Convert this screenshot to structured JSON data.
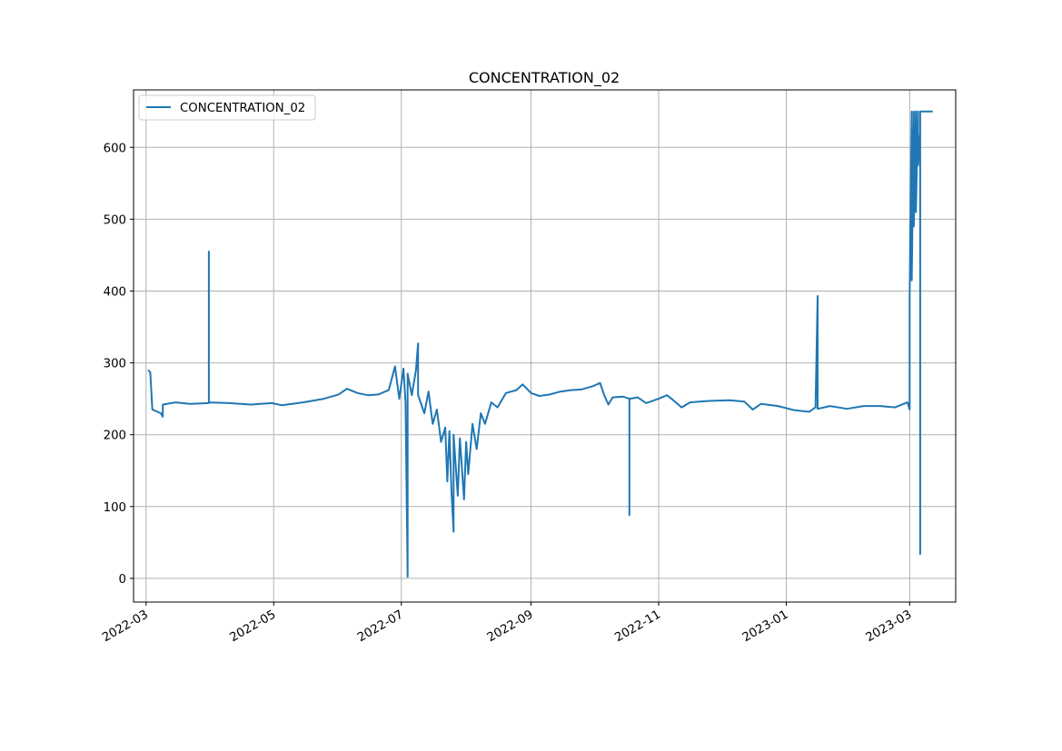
{
  "chart_data": {
    "type": "line",
    "title": "CONCENTRATION_02",
    "xlabel": "",
    "ylabel": "",
    "x_tick_labels": [
      "2022-03",
      "2022-05",
      "2022-07",
      "2022-09",
      "2022-11",
      "2023-01",
      "2023-03"
    ],
    "y_ticks": [
      0,
      100,
      200,
      300,
      400,
      500,
      600
    ],
    "xlim": [
      "2022-02-23",
      "2023-03-23"
    ],
    "ylim": [
      -33,
      680
    ],
    "grid": true,
    "legend_placement": "upper-left",
    "colors": {
      "series": "#1f77b4",
      "grid": "#b0b0b0"
    },
    "series": [
      {
        "name": "CONCENTRATION_02",
        "points": [
          [
            "2022-03-02",
            290
          ],
          [
            "2022-03-03",
            287
          ],
          [
            "2022-03-04",
            235
          ],
          [
            "2022-03-08",
            230
          ],
          [
            "2022-03-09",
            225
          ],
          [
            "2022-03-09",
            242
          ],
          [
            "2022-03-15",
            245
          ],
          [
            "2022-03-22",
            243
          ],
          [
            "2022-03-31",
            244
          ],
          [
            "2022-03-31",
            455
          ],
          [
            "2022-03-31",
            245
          ],
          [
            "2022-04-10",
            244
          ],
          [
            "2022-04-20",
            242
          ],
          [
            "2022-04-30",
            244
          ],
          [
            "2022-05-05",
            241
          ],
          [
            "2022-05-15",
            245
          ],
          [
            "2022-05-25",
            250
          ],
          [
            "2022-06-01",
            256
          ],
          [
            "2022-06-05",
            264
          ],
          [
            "2022-06-10",
            258
          ],
          [
            "2022-06-15",
            255
          ],
          [
            "2022-06-20",
            256
          ],
          [
            "2022-06-25",
            262
          ],
          [
            "2022-06-28",
            295
          ],
          [
            "2022-06-30",
            250
          ],
          [
            "2022-07-02",
            292
          ],
          [
            "2022-07-03",
            245
          ],
          [
            "2022-07-04",
            2
          ],
          [
            "2022-07-04",
            285
          ],
          [
            "2022-07-06",
            255
          ],
          [
            "2022-07-08",
            290
          ],
          [
            "2022-07-09",
            327
          ],
          [
            "2022-07-09",
            255
          ],
          [
            "2022-07-12",
            230
          ],
          [
            "2022-07-14",
            260
          ],
          [
            "2022-07-16",
            215
          ],
          [
            "2022-07-18",
            235
          ],
          [
            "2022-07-20",
            190
          ],
          [
            "2022-07-22",
            210
          ],
          [
            "2022-07-23",
            135
          ],
          [
            "2022-07-24",
            205
          ],
          [
            "2022-07-25",
            120
          ],
          [
            "2022-07-26",
            65
          ],
          [
            "2022-07-26",
            200
          ],
          [
            "2022-07-28",
            115
          ],
          [
            "2022-07-29",
            195
          ],
          [
            "2022-07-31",
            110
          ],
          [
            "2022-08-01",
            190
          ],
          [
            "2022-08-02",
            145
          ],
          [
            "2022-08-04",
            215
          ],
          [
            "2022-08-06",
            180
          ],
          [
            "2022-08-08",
            230
          ],
          [
            "2022-08-10",
            215
          ],
          [
            "2022-08-13",
            245
          ],
          [
            "2022-08-16",
            238
          ],
          [
            "2022-08-20",
            258
          ],
          [
            "2022-08-25",
            262
          ],
          [
            "2022-08-28",
            270
          ],
          [
            "2022-09-01",
            258
          ],
          [
            "2022-09-05",
            254
          ],
          [
            "2022-09-10",
            256
          ],
          [
            "2022-09-15",
            260
          ],
          [
            "2022-09-20",
            262
          ],
          [
            "2022-09-25",
            263
          ],
          [
            "2022-10-01",
            268
          ],
          [
            "2022-10-04",
            272
          ],
          [
            "2022-10-06",
            255
          ],
          [
            "2022-10-08",
            242
          ],
          [
            "2022-10-10",
            252
          ],
          [
            "2022-10-15",
            253
          ],
          [
            "2022-10-18",
            250
          ],
          [
            "2022-10-18",
            88
          ],
          [
            "2022-10-18",
            250
          ],
          [
            "2022-10-22",
            252
          ],
          [
            "2022-10-26",
            244
          ],
          [
            "2022-11-01",
            250
          ],
          [
            "2022-11-05",
            255
          ],
          [
            "2022-11-08",
            248
          ],
          [
            "2022-11-12",
            238
          ],
          [
            "2022-11-16",
            245
          ],
          [
            "2022-11-25",
            247
          ],
          [
            "2022-12-05",
            248
          ],
          [
            "2022-12-12",
            246
          ],
          [
            "2022-12-16",
            235
          ],
          [
            "2022-12-20",
            243
          ],
          [
            "2022-12-28",
            240
          ],
          [
            "2023-01-05",
            234
          ],
          [
            "2023-01-12",
            232
          ],
          [
            "2023-01-15",
            238
          ],
          [
            "2023-01-16",
            393
          ],
          [
            "2023-01-16",
            236
          ],
          [
            "2023-01-22",
            240
          ],
          [
            "2023-01-30",
            236
          ],
          [
            "2023-02-07",
            240
          ],
          [
            "2023-02-15",
            240
          ],
          [
            "2023-02-22",
            238
          ],
          [
            "2023-02-28",
            245
          ],
          [
            "2023-03-01",
            235
          ],
          [
            "2023-03-01",
            255
          ],
          [
            "2023-03-01",
            390
          ],
          [
            "2023-03-02",
            650
          ],
          [
            "2023-03-02",
            415
          ],
          [
            "2023-03-03",
            650
          ],
          [
            "2023-03-03",
            490
          ],
          [
            "2023-03-04",
            650
          ],
          [
            "2023-03-04",
            510
          ],
          [
            "2023-03-05",
            650
          ],
          [
            "2023-03-05",
            575
          ],
          [
            "2023-03-06",
            620
          ],
          [
            "2023-03-06",
            34
          ],
          [
            "2023-03-06",
            650
          ],
          [
            "2023-03-12",
            650
          ]
        ]
      }
    ]
  }
}
